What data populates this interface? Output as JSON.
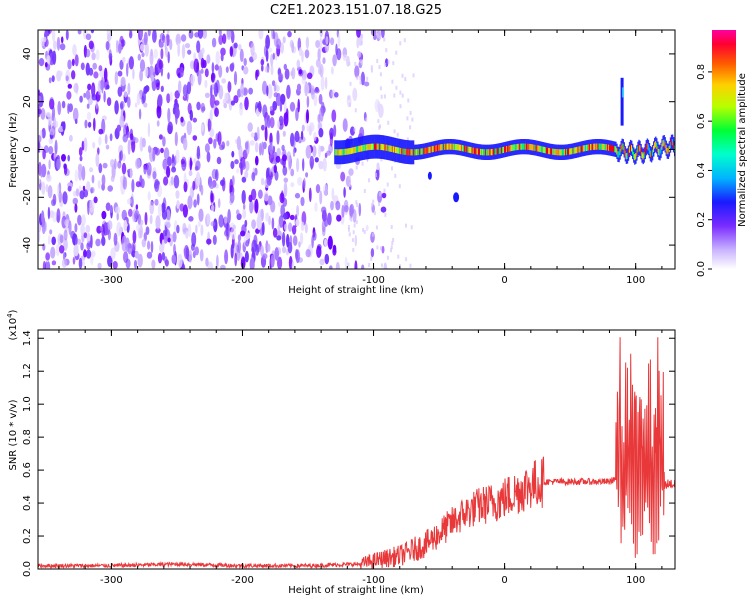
{
  "figure": {
    "title": "C2E1.2023.151.07.18.G25"
  },
  "colors": {
    "snr_line": "#e8383a",
    "axis": "#000000",
    "background": "#ffffff",
    "colormap": [
      "#ffffff",
      "#d9c6ff",
      "#8a4dff",
      "#6a00ff",
      "#1a1aff",
      "#00c8ff",
      "#00ff66",
      "#ccff00",
      "#ffd000",
      "#ff6600",
      "#ff0000",
      "#ff00aa"
    ]
  },
  "chart_data": [
    {
      "type": "heatmap",
      "title": "",
      "xlabel": "Height of straight line (km)",
      "ylabel": "Frequency (Hz)",
      "xlim": [
        -356,
        130
      ],
      "ylim": [
        -50,
        50
      ],
      "x_ticks": [
        -300,
        -200,
        -100,
        0,
        100
      ],
      "x_tick_labels": [
        "-300",
        "-200",
        "-100",
        "0",
        "100"
      ],
      "y_ticks": [
        -40,
        -20,
        0,
        20,
        40
      ],
      "y_tick_labels": [
        "-40",
        "-20",
        "0",
        "20",
        "40"
      ],
      "colorbar": {
        "label": "Normalized spectral amplitude",
        "range": [
          0,
          0.97
        ],
        "ticks": [
          0.0,
          0.2,
          0.4,
          0.6,
          0.8
        ],
        "tick_labels": [
          "0.0",
          "0.2",
          "0.4",
          "0.6",
          "0.8"
        ],
        "placement": "right"
      },
      "features": {
        "noise_region_x": [
          -356,
          -110
        ],
        "main_signal_band": {
          "x": [
            -130,
            130
          ],
          "frequency": [
            -4,
            4
          ],
          "peak_amplitude": 0.9
        },
        "spike": {
          "x": 90,
          "frequency": [
            10,
            30
          ]
        },
        "blob": {
          "x": -37,
          "frequency": -20
        }
      }
    },
    {
      "type": "line",
      "title": "",
      "xlabel": "Height of straight line (km)",
      "ylabel": "SNR (10 * v/v)",
      "y_multiplier": "(x10",
      "y_multiplier_exponent": "4",
      "y_multiplier_close": ")",
      "xlim": [
        -356,
        130
      ],
      "ylim": [
        0,
        1.45
      ],
      "x_ticks": [
        -300,
        -200,
        -100,
        0,
        100
      ],
      "x_tick_labels": [
        "-300",
        "-200",
        "-100",
        "0",
        "100"
      ],
      "y_ticks": [
        0.0,
        0.2,
        0.4,
        0.6,
        0.8,
        1.0,
        1.2,
        1.4
      ],
      "y_tick_labels": [
        "0.0",
        "0.2",
        "0.4",
        "0.6",
        "0.8",
        "1.0",
        "1.2",
        "1.4"
      ],
      "series": [
        {
          "color": "#e8383a",
          "x": [
            -356,
            -300,
            -250,
            -200,
            -150,
            -110,
            -100,
            -80,
            -60,
            -40,
            -30,
            -20,
            -10,
            0,
            10,
            20,
            30,
            40,
            60,
            80,
            85,
            88,
            92,
            96,
            100,
            102,
            105,
            108,
            112,
            116,
            120,
            125,
            130
          ],
          "y": [
            0.02,
            0.02,
            0.03,
            0.02,
            0.02,
            0.03,
            0.05,
            0.08,
            0.15,
            0.28,
            0.34,
            0.38,
            0.4,
            0.43,
            0.47,
            0.51,
            0.53,
            0.53,
            0.53,
            0.53,
            0.55,
            0.7,
            0.45,
            0.2,
            0.9,
            1.35,
            0.1,
            1.25,
            0.1,
            0.9,
            0.5,
            0.52,
            0.51
          ]
        }
      ]
    }
  ]
}
